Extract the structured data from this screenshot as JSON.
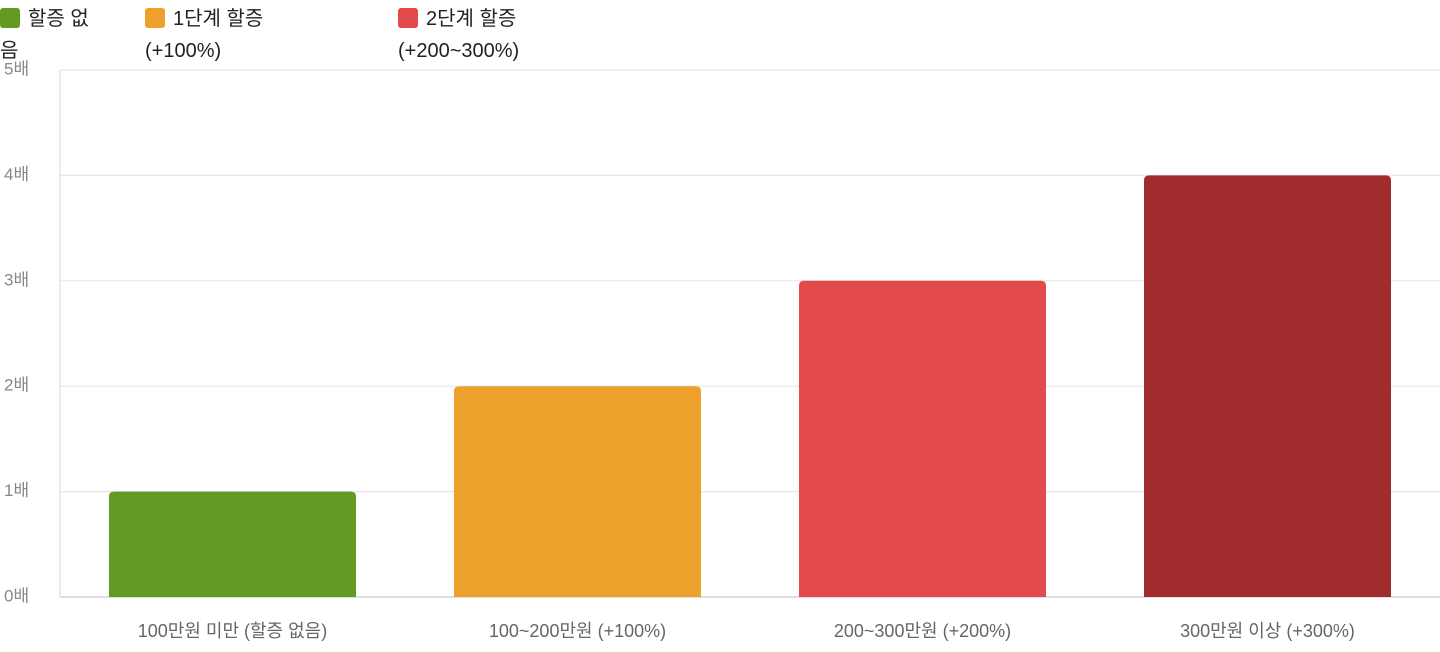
{
  "chart_data": {
    "type": "bar",
    "legend": [
      {
        "name": "할증 없음",
        "color": "#629a24"
      },
      {
        "name": "1단계 할증 (+100%)",
        "color": "#eda02b"
      },
      {
        "name": "2단계 할증 (+200~300%)",
        "color": "#e24a4b"
      }
    ],
    "categories": [
      "100만원 미만 (할증 없음)",
      "100~200만원 (+100%)",
      "200~300만원 (+200%)",
      "300만원 이상 (+300%)"
    ],
    "values": [
      1,
      2,
      3,
      4
    ],
    "colors": [
      "#629a24",
      "#eda02b",
      "#e24a4b",
      "#a12c2e"
    ],
    "ylim": [
      0,
      5
    ],
    "yticks": [
      {
        "value": 0,
        "label": "0배"
      },
      {
        "value": 1,
        "label": "1배"
      },
      {
        "value": 2,
        "label": "2배"
      },
      {
        "value": 3,
        "label": "3배"
      },
      {
        "value": 4,
        "label": "4배"
      },
      {
        "value": 5,
        "label": "5배"
      }
    ],
    "grid": true
  }
}
